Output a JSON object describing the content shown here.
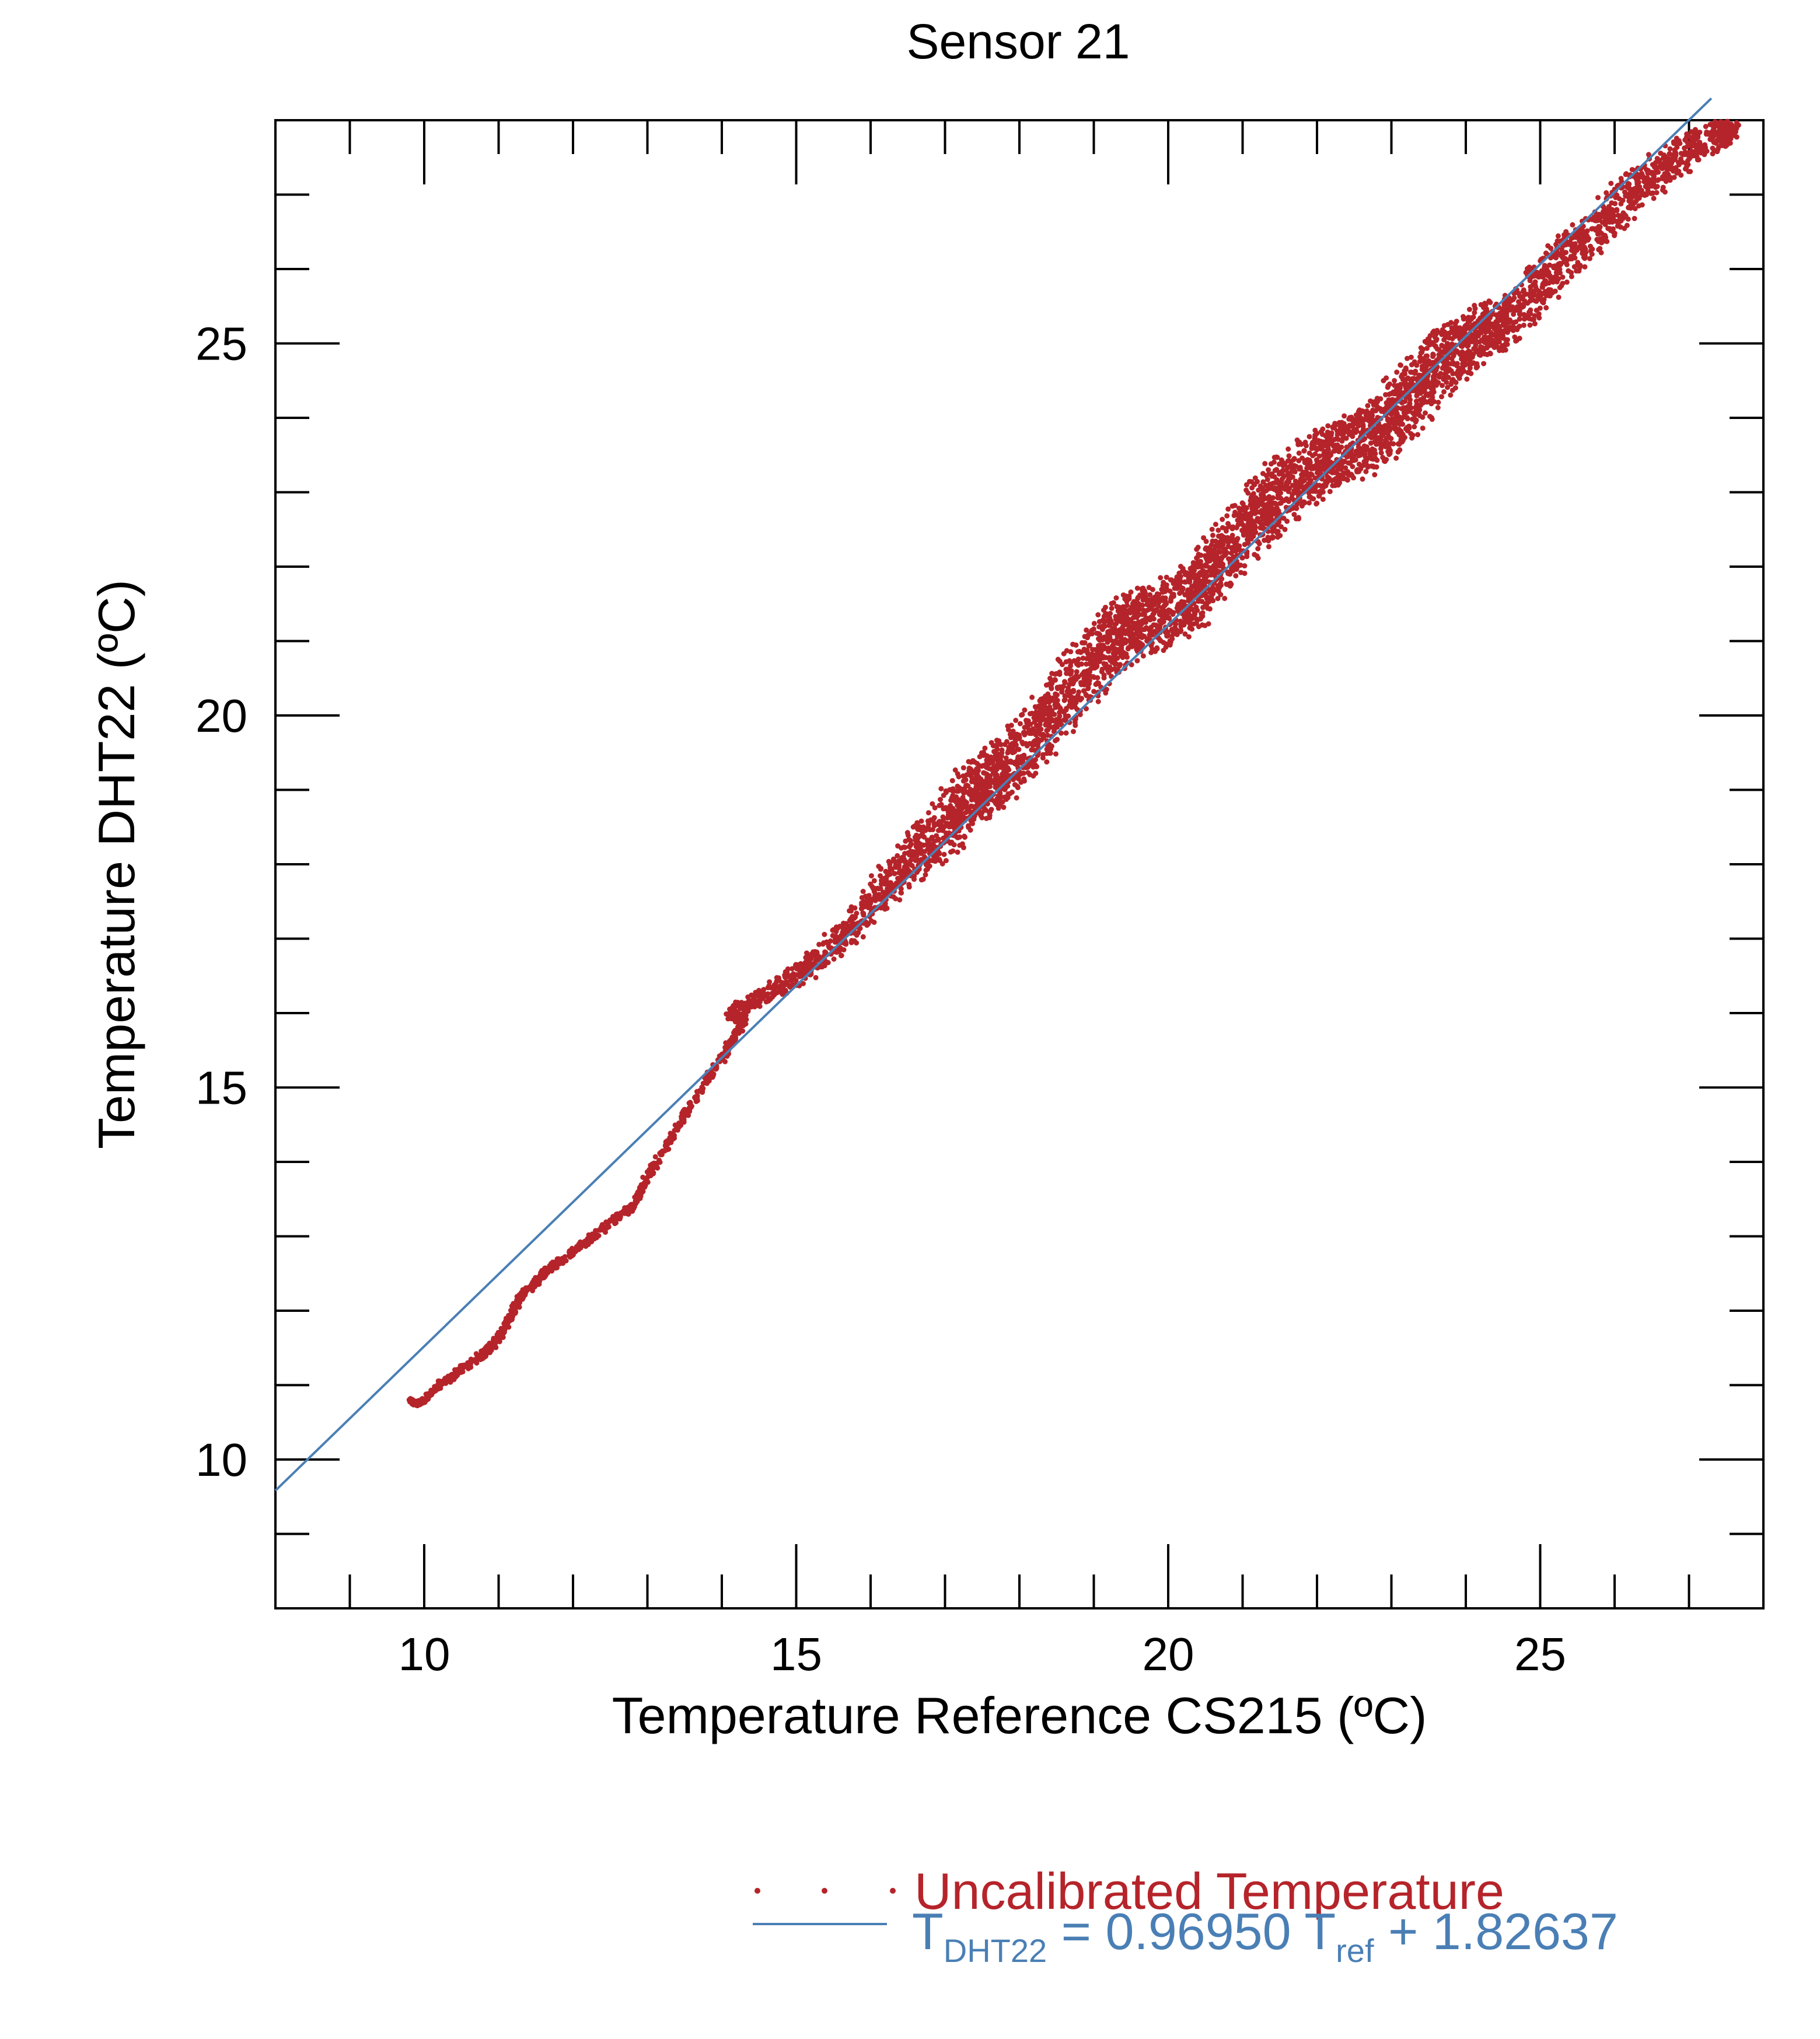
{
  "chart_data": {
    "type": "scatter",
    "title": "Sensor 21",
    "xlabel": "Temperature Reference CS215 (ºC)",
    "ylabel": "Temperature DHT22 (ºC)",
    "xlim": [
      8,
      28
    ],
    "ylim": [
      8,
      28
    ],
    "x_ticks": [
      10,
      15,
      20,
      25
    ],
    "y_ticks": [
      10,
      15,
      20,
      25
    ],
    "minor_tick_step": 1,
    "grid": false,
    "legend_position": "bottom-right",
    "colors": {
      "points": "#b5242a",
      "fit_line": "#4a7fb5",
      "axes": "#000000"
    },
    "series": [
      {
        "name": "Uncalibrated Temperature",
        "kind": "scatter",
        "path_x": [
          9.8,
          9.9,
          10.0,
          10.2,
          10.5,
          10.9,
          11.1,
          11.3,
          11.6,
          12.0,
          12.4,
          12.8,
          13.0,
          13.3,
          13.6,
          14.0,
          14.3,
          14.1,
          14.5,
          15.0,
          15.4,
          15.8,
          16.2,
          16.6,
          17.0,
          17.3,
          17.6,
          17.8,
          18.2,
          18.5,
          18.9,
          19.2,
          19.5,
          19.8,
          20.2,
          20.5,
          20.8,
          21.2,
          21.5,
          21.9,
          22.2,
          22.5,
          22.8,
          23.1,
          23.4,
          23.7,
          24.0,
          24.3,
          24.6,
          25.0,
          25.4,
          25.8,
          26.2,
          26.6,
          27.0,
          27.4,
          27.6
        ],
        "path_y": [
          10.8,
          10.75,
          10.8,
          11.0,
          11.2,
          11.5,
          11.8,
          12.2,
          12.5,
          12.8,
          13.1,
          13.4,
          13.8,
          14.3,
          14.8,
          15.4,
          15.9,
          16.0,
          16.2,
          16.5,
          16.8,
          17.2,
          17.7,
          18.1,
          18.5,
          18.9,
          19.1,
          19.3,
          19.7,
          20.1,
          20.6,
          21.0,
          21.2,
          21.3,
          21.5,
          21.8,
          22.2,
          22.7,
          23.0,
          23.3,
          23.5,
          23.6,
          23.8,
          24.1,
          24.4,
          24.8,
          25.0,
          25.2,
          25.3,
          25.8,
          26.2,
          26.6,
          27.0,
          27.3,
          27.6,
          27.8,
          27.9
        ],
        "spread": [
          0.05,
          0.05,
          0.05,
          0.08,
          0.1,
          0.1,
          0.1,
          0.1,
          0.1,
          0.1,
          0.1,
          0.1,
          0.1,
          0.1,
          0.1,
          0.12,
          0.12,
          0.12,
          0.2,
          0.25,
          0.3,
          0.35,
          0.45,
          0.55,
          0.6,
          0.65,
          0.65,
          0.65,
          0.65,
          0.65,
          0.7,
          0.7,
          0.7,
          0.7,
          0.7,
          0.7,
          0.7,
          0.7,
          0.7,
          0.7,
          0.7,
          0.7,
          0.7,
          0.7,
          0.7,
          0.7,
          0.6,
          0.55,
          0.55,
          0.5,
          0.5,
          0.5,
          0.45,
          0.4,
          0.35,
          0.3,
          0.3
        ]
      },
      {
        "name": "fit",
        "kind": "line",
        "slope": 0.9695,
        "intercept": 1.82637,
        "x_range": [
          8,
          27.3
        ]
      }
    ],
    "legend": {
      "points_label": "Uncalibrated Temperature",
      "fit_label": {
        "t": "T",
        "sub_dht": "DHT22",
        "equals": " =  0.96950 T",
        "sub_ref": "ref",
        "tail": " + 1.82637"
      }
    }
  }
}
